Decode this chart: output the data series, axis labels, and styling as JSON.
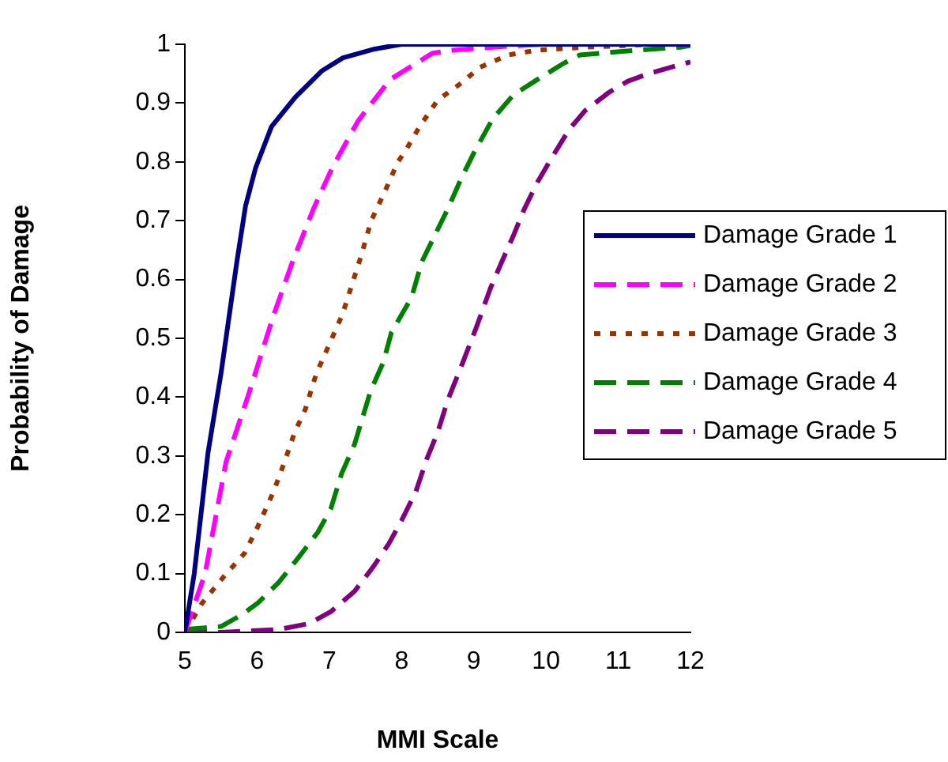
{
  "chart_data": {
    "type": "line",
    "xlabel": "MMI Scale",
    "ylabel": "Probability of Damage",
    "xlim": [
      5,
      12
    ],
    "xticks": [
      5,
      6,
      7,
      8,
      9,
      10,
      11,
      12
    ],
    "ylim": [
      0,
      1
    ],
    "yticks": [
      0,
      0.1,
      0.2,
      0.3,
      0.4,
      0.5,
      0.6,
      0.7,
      0.8,
      0.9,
      1
    ],
    "grid": false,
    "legend": "right",
    "marker": "none",
    "series": [
      {
        "name": "Damage Grade 1",
        "color": "#000080",
        "line_style": "solid",
        "x": [
          5,
          5.13,
          5.32,
          5.5,
          5.72,
          5.84,
          5.98,
          6.2,
          6.53,
          6.9,
          7.19,
          7.63,
          8,
          9,
          10,
          11,
          12
        ],
        "values": [
          0,
          0.1,
          0.305,
          0.44,
          0.63,
          0.725,
          0.79,
          0.86,
          0.91,
          0.955,
          0.977,
          0.992,
          1,
          1,
          1,
          1,
          1
        ]
      },
      {
        "name": "Damage Grade 2",
        "color": "#ff00ff",
        "line_style": "dashed",
        "x": [
          5,
          5.28,
          5.57,
          5.87,
          6.23,
          6.49,
          6.78,
          7.04,
          7.4,
          7.84,
          8.43,
          8.72,
          9.5,
          10
        ],
        "values": [
          0,
          0.1,
          0.29,
          0.4,
          0.54,
          0.63,
          0.72,
          0.79,
          0.87,
          0.94,
          0.985,
          0.99,
          0.997,
          1
        ]
      },
      {
        "name": "Damage Grade 3",
        "color": "#993300",
        "line_style": "dotted",
        "x": [
          5,
          5.24,
          5.54,
          5.83,
          6.01,
          6.23,
          6.38,
          6.52,
          6.67,
          6.82,
          7,
          7.18,
          7.44,
          7.58,
          7.77,
          7.95,
          8.06,
          8.25,
          8.5,
          8.86,
          9.07,
          9.48,
          9.89,
          10.55,
          11.5,
          12
        ],
        "values": [
          0,
          0.05,
          0.095,
          0.135,
          0.18,
          0.24,
          0.29,
          0.34,
          0.38,
          0.44,
          0.49,
          0.54,
          0.64,
          0.7,
          0.75,
          0.8,
          0.82,
          0.86,
          0.905,
          0.937,
          0.96,
          0.982,
          0.99,
          0.995,
          1,
          1
        ]
      },
      {
        "name": "Damage Grade 4",
        "color": "#008000",
        "line_style": "dashed",
        "x": [
          5,
          5.5,
          5.79,
          6.01,
          6.3,
          6.59,
          6.84,
          7.02,
          7.17,
          7.35,
          7.57,
          7.75,
          7.86,
          8.14,
          8.28,
          8.46,
          8.64,
          8.82,
          9,
          9.26,
          9.55,
          9.88,
          10.25,
          10.47,
          11.27,
          11.86,
          12
        ],
        "values": [
          0.005,
          0.01,
          0.03,
          0.05,
          0.085,
          0.13,
          0.17,
          0.21,
          0.27,
          0.32,
          0.41,
          0.46,
          0.51,
          0.57,
          0.63,
          0.675,
          0.72,
          0.77,
          0.815,
          0.873,
          0.914,
          0.94,
          0.968,
          0.982,
          0.99,
          0.995,
          0.998
        ]
      },
      {
        "name": "Damage Grade 5",
        "color": "#800080",
        "line_style": "dashed",
        "x": [
          5,
          5.5,
          6.3,
          6.72,
          7.02,
          7.35,
          7.6,
          7.82,
          8,
          8.2,
          8.35,
          8.5,
          8.64,
          8.82,
          9.04,
          9.23,
          9.37,
          9.55,
          9.7,
          9.88,
          10.07,
          10.32,
          10.54,
          10.87,
          11.13,
          11.42,
          11.82,
          12
        ],
        "values": [
          0,
          0,
          0.005,
          0.015,
          0.035,
          0.07,
          0.11,
          0.15,
          0.19,
          0.24,
          0.295,
          0.34,
          0.395,
          0.45,
          0.52,
          0.585,
          0.625,
          0.675,
          0.72,
          0.765,
          0.805,
          0.855,
          0.887,
          0.918,
          0.937,
          0.95,
          0.964,
          0.97
        ]
      }
    ]
  }
}
